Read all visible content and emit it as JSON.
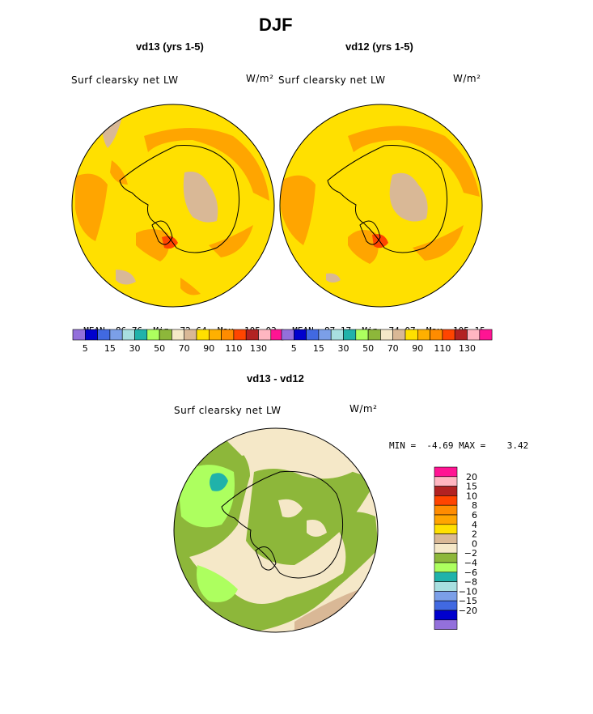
{
  "figure_title": "DJF",
  "panels": [
    {
      "title": "vd13 (yrs 1-5)",
      "variable": "Surf clearsky net LW",
      "units": "W/m²",
      "stats": {
        "mean_label": "MEAN=",
        "mean": "86.76",
        "min_label": "Min=",
        "min": "72.64",
        "max_label": "Max=",
        "max": "105.03"
      }
    },
    {
      "title": "vd12 (yrs 1-5)",
      "variable": "Surf clearsky net LW",
      "units": "W/m²",
      "stats": {
        "mean_label": "MEAN=",
        "mean": "87.17",
        "min_label": "Min=",
        "min": "74.07",
        "max_label": "Max=",
        "max": "105.15"
      }
    }
  ],
  "top_colorbar": {
    "colors": [
      "#9370DB",
      "#0000CD",
      "#4169E1",
      "#7B9FE8",
      "#A8DFE0",
      "#20B2AA",
      "#ADFF5F",
      "#8DB73A",
      "#F5E8C8",
      "#D9B896",
      "#FFE000",
      "#FFB000",
      "#FF8C00",
      "#FF4500",
      "#B22222",
      "#FFB6C1",
      "#FF1493"
    ],
    "tick_labels": [
      "5",
      "15",
      "30",
      "50",
      "70",
      "90",
      "110",
      "130"
    ]
  },
  "diff_panel": {
    "title": "vd13 - vd12",
    "variable": "Surf clearsky net LW",
    "units": "W/m²",
    "stats_text": "MIN =  -4.69 MAX =    3.42"
  },
  "diff_colorbar": {
    "colors_top_to_bottom": [
      "#FF1493",
      "#FFB6C1",
      "#B22222",
      "#FF4500",
      "#FF8C00",
      "#FFA500",
      "#FFE000",
      "#D9B896",
      "#F5E8C8",
      "#8DB73A",
      "#ADFF5F",
      "#20B2AA",
      "#A8DFE0",
      "#7B9FE8",
      "#4169E1",
      "#0000CD",
      "#9370DB"
    ],
    "tick_labels_top_to_bottom": [
      "20",
      "15",
      "10",
      "8",
      "6",
      "4",
      "2",
      "0",
      "−2",
      "−4",
      "−6",
      "−8",
      "−10",
      "−15",
      "−20"
    ]
  },
  "legend": {
    "map_colors": {
      "ocean_base": "#FFE000",
      "band": "#FFA500",
      "strong": "#FF4500",
      "plateau": "#D9B896",
      "diff_green": "#8DB73A",
      "diff_lightgreen": "#ADFF5F",
      "diff_beige": "#F5E8C8",
      "diff_tan": "#D9B896",
      "diff_teal": "#20B2AA"
    }
  }
}
